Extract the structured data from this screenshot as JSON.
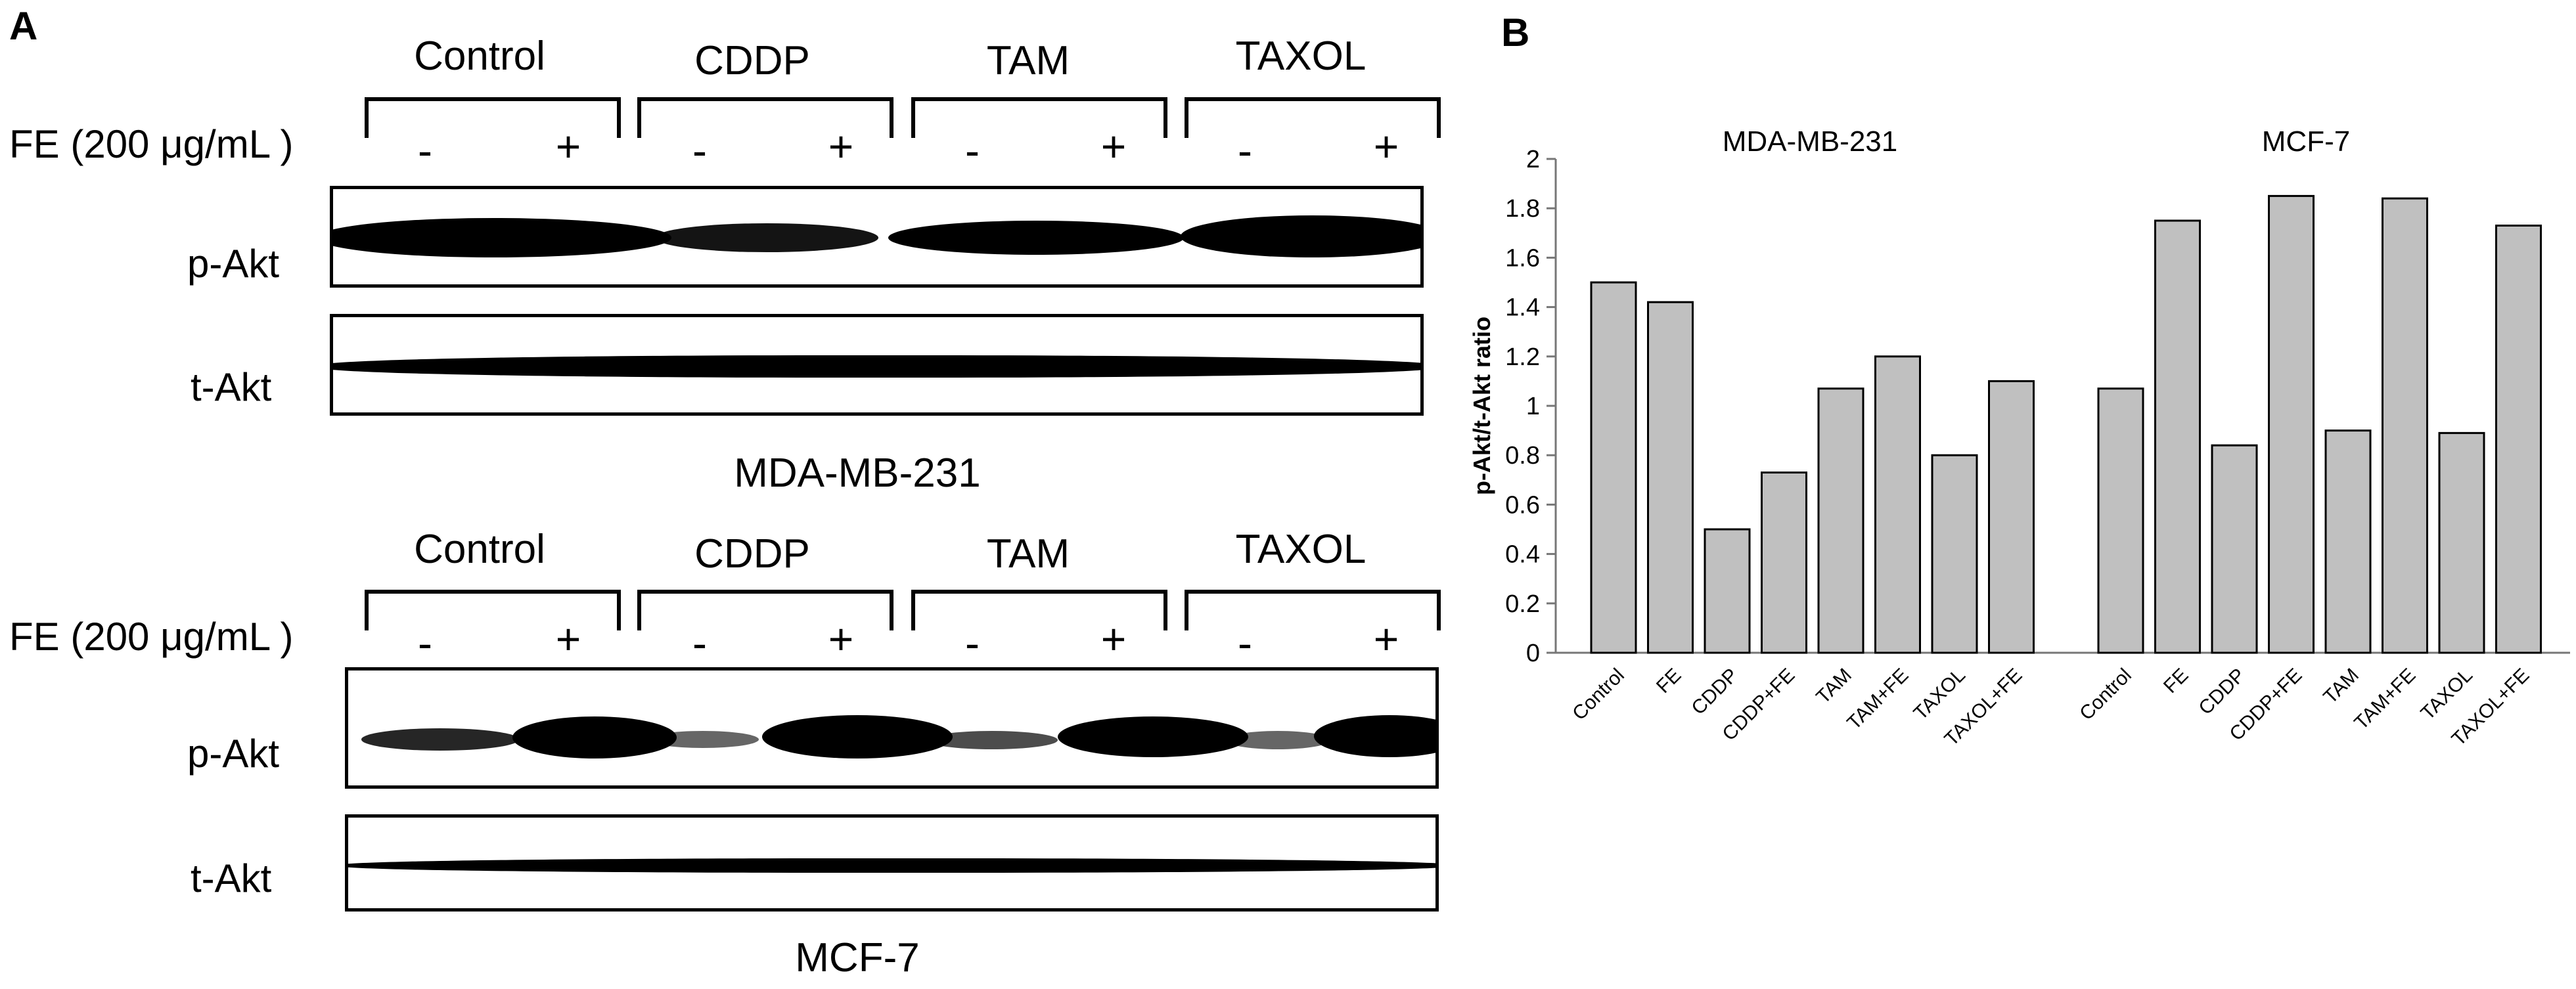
{
  "panel_a": {
    "letter": "A",
    "fe_label": "FE (200 μg/mL )",
    "groups": [
      "Control",
      "CDDP",
      "TAM",
      "TAXOL"
    ],
    "signs": [
      "-",
      "+",
      "-",
      "+",
      "-",
      "+",
      "-",
      "+"
    ],
    "rows": [
      "p-Akt",
      "t-Akt"
    ],
    "cell_lines": [
      "MDA-MB-231",
      "MCF-7"
    ]
  },
  "panel_b": {
    "letter": "B"
  },
  "chart_data": {
    "type": "bar",
    "ylabel": "p-Akt/t-Akt ratio",
    "ylim": [
      0,
      2
    ],
    "yticks": [
      "0",
      "0.2",
      "0.4",
      "0.6",
      "0.8",
      "1",
      "1.2",
      "1.4",
      "1.6",
      "1.8",
      "2"
    ],
    "grid": false,
    "bar_color": "#c0c0c0",
    "groups": [
      {
        "name": "MDA-MB-231",
        "categories": [
          "Control",
          "FE",
          "CDDP",
          "CDDP+FE",
          "TAM",
          "TAM+FE",
          "TAXOL",
          "TAXOL+FE"
        ],
        "values": [
          1.5,
          1.42,
          0.5,
          0.73,
          1.07,
          1.2,
          0.8,
          1.1
        ]
      },
      {
        "name": "MCF-7",
        "categories": [
          "Control",
          "FE",
          "CDDP",
          "CDDP+FE",
          "TAM",
          "TAM+FE",
          "TAXOL",
          "TAXOL+FE"
        ],
        "values": [
          1.07,
          1.75,
          0.84,
          1.85,
          0.9,
          1.84,
          0.89,
          1.73
        ]
      }
    ]
  }
}
